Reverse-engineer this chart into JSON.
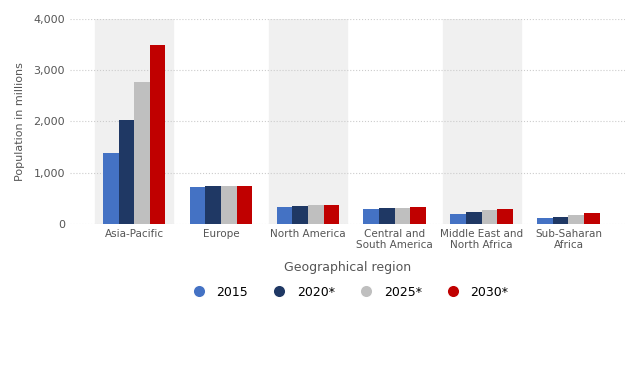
{
  "categories": [
    "Asia-Pacific",
    "Europe",
    "North America",
    "Central and\nSouth America",
    "Middle East and\nNorth Africa",
    "Sub-Saharan\nAfrica"
  ],
  "series": {
    "2015": [
      1380,
      720,
      330,
      300,
      200,
      110
    ],
    "2020*": [
      2020,
      740,
      350,
      310,
      240,
      140
    ],
    "2025*": [
      2780,
      740,
      365,
      320,
      270,
      170
    ],
    "2030*": [
      3490,
      740,
      365,
      330,
      300,
      220
    ]
  },
  "colors": {
    "2015": "#4472C4",
    "2020*": "#1F3864",
    "2025*": "#BFBFBF",
    "2030*": "#C00000"
  },
  "xlabel": "Geographical region",
  "ylabel": "Population in millions",
  "ylim": [
    0,
    4000
  ],
  "yticks": [
    0,
    1000,
    2000,
    3000,
    4000
  ],
  "ytick_labels": [
    "0",
    "1,000",
    "2,000",
    "3,000",
    "4,000"
  ],
  "legend_labels": [
    "2015",
    "2020*",
    "2025*",
    "2030*"
  ],
  "background_color": "#ffffff",
  "plot_background": "#f0f0f0",
  "grid_color": "#cccccc"
}
